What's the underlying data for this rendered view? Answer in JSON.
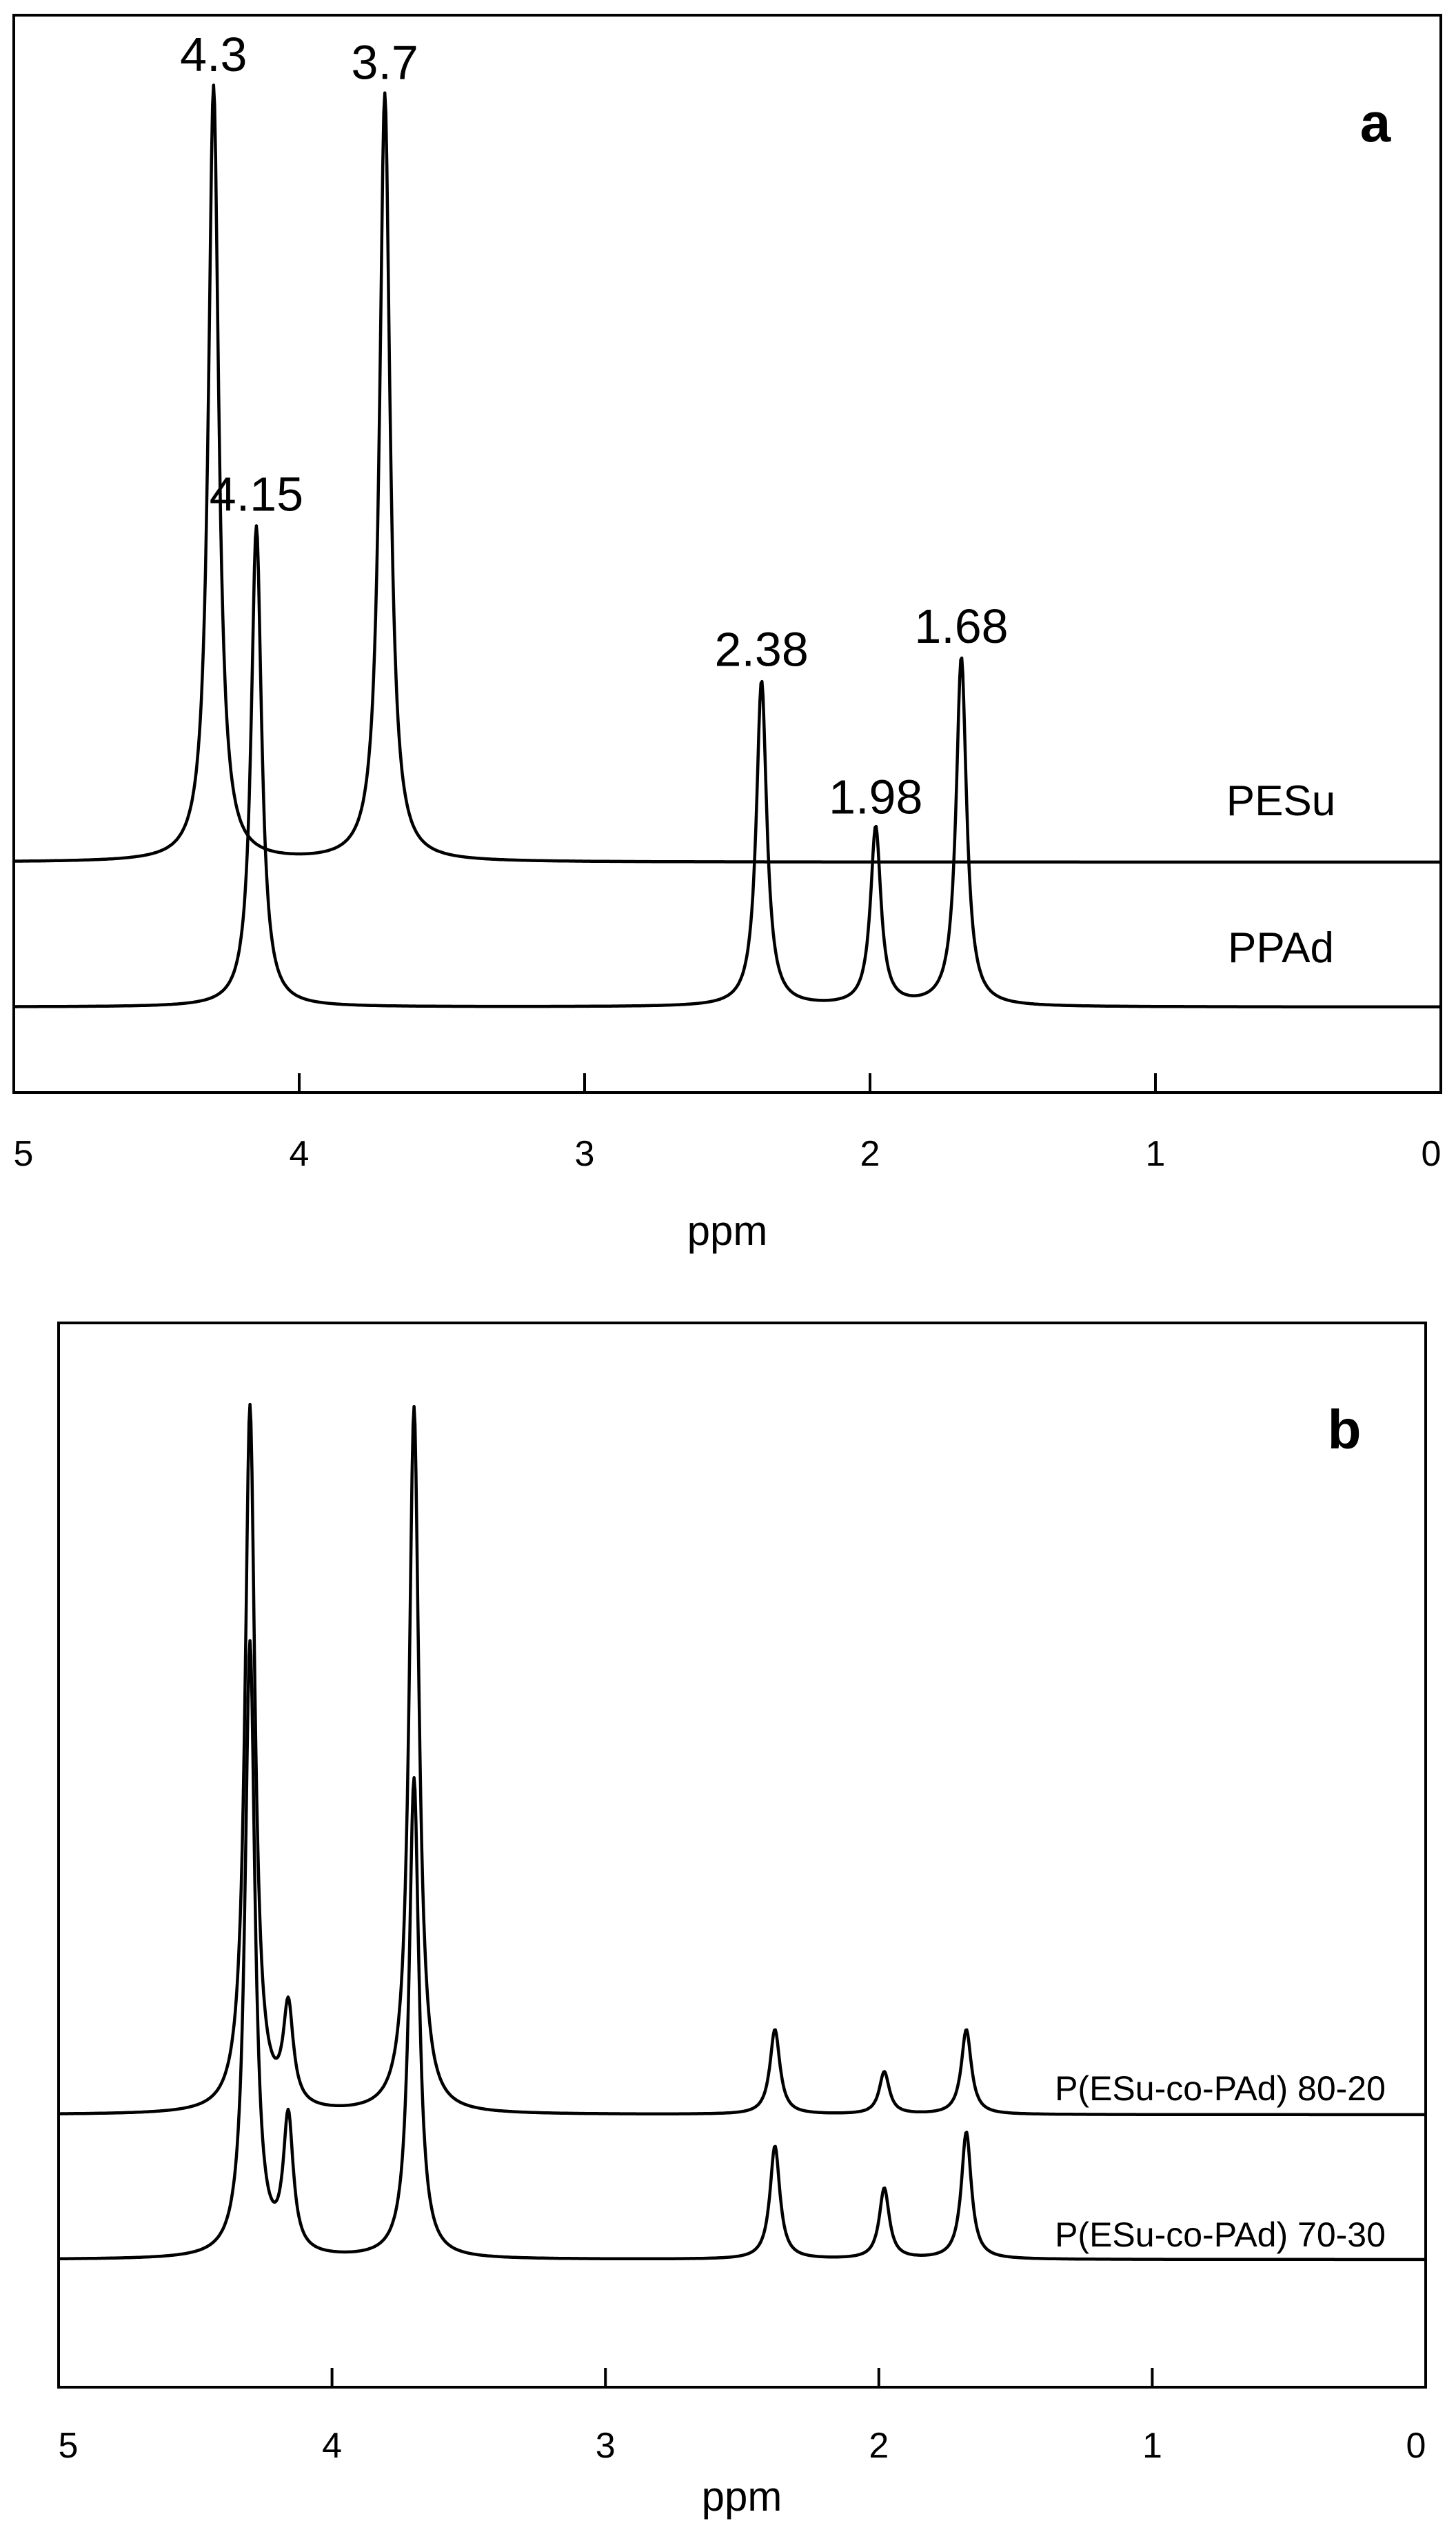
{
  "chart_data": [
    {
      "type": "line",
      "panel_label": "a",
      "xlabel": "ppm",
      "xlim": [
        5,
        0
      ],
      "x_reversed": true,
      "xticks": [
        "5",
        "4",
        "3",
        "2",
        "1",
        "0"
      ],
      "grid": false,
      "peak_labels": [
        {
          "x": 4.3,
          "text": "4.3"
        },
        {
          "x": 4.15,
          "text": "4.15"
        },
        {
          "x": 3.7,
          "text": "3.7"
        },
        {
          "x": 2.38,
          "text": "2.38"
        },
        {
          "x": 1.98,
          "text": "1.98"
        },
        {
          "x": 1.68,
          "text": "1.68"
        }
      ],
      "series": [
        {
          "name": "PESu",
          "peaks": [
            {
              "x": 4.3,
              "height": 1.0
            },
            {
              "x": 3.7,
              "height": 0.99
            }
          ]
        },
        {
          "name": "PPAd",
          "peaks": [
            {
              "x": 4.15,
              "height": 0.62
            },
            {
              "x": 2.38,
              "height": 0.42
            },
            {
              "x": 1.98,
              "height": 0.23
            },
            {
              "x": 1.68,
              "height": 0.45
            }
          ]
        }
      ]
    },
    {
      "type": "line",
      "panel_label": "b",
      "xlabel": "ppm",
      "xlim": [
        5,
        0
      ],
      "x_reversed": true,
      "xticks": [
        "5",
        "4",
        "3",
        "2",
        "1",
        "0"
      ],
      "grid": false,
      "series": [
        {
          "name": "P(ESu-co-PAd) 80-20",
          "peaks": [
            {
              "x": 4.3,
              "height": 1.0
            },
            {
              "x": 4.16,
              "height": 0.14
            },
            {
              "x": 3.7,
              "height": 1.0
            },
            {
              "x": 2.38,
              "height": 0.12
            },
            {
              "x": 1.98,
              "height": 0.06
            },
            {
              "x": 1.68,
              "height": 0.12
            }
          ]
        },
        {
          "name": "P(ESu-co-PAd) 70-30",
          "peaks": [
            {
              "x": 4.3,
              "height": 0.87
            },
            {
              "x": 4.16,
              "height": 0.19
            },
            {
              "x": 3.7,
              "height": 0.68
            },
            {
              "x": 2.38,
              "height": 0.16
            },
            {
              "x": 1.98,
              "height": 0.1
            },
            {
              "x": 1.68,
              "height": 0.18
            }
          ]
        }
      ]
    }
  ]
}
